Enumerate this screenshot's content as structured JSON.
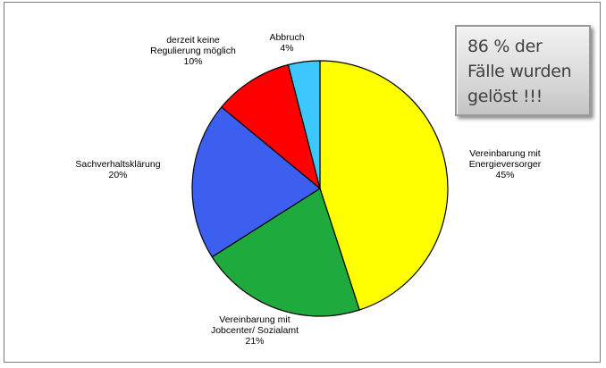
{
  "callout": {
    "text": "86 % der\nFälle wurden\ngelöst !!!"
  },
  "chart_data": {
    "type": "pie",
    "start_angle_deg": 0,
    "direction": "clockwise",
    "slices": [
      {
        "label": "Vereinbarung mit\nEnergieversorger",
        "value": 45,
        "value_label": "45%",
        "color": "#ffff00"
      },
      {
        "label": "Vereinbarung mit\nJobcenter/ Sozialamt",
        "value": 21,
        "value_label": "21%",
        "color": "#1eaa3c"
      },
      {
        "label": "Sachverhaltsklärung",
        "value": 20,
        "value_label": "20%",
        "color": "#3d5ff0"
      },
      {
        "label": "derzeit keine\nRegulierung möglich",
        "value": 10,
        "value_label": "10%",
        "color": "#ff0000"
      },
      {
        "label": "Abbruch",
        "value": 4,
        "value_label": "4%",
        "color": "#3cc8ff"
      }
    ]
  }
}
